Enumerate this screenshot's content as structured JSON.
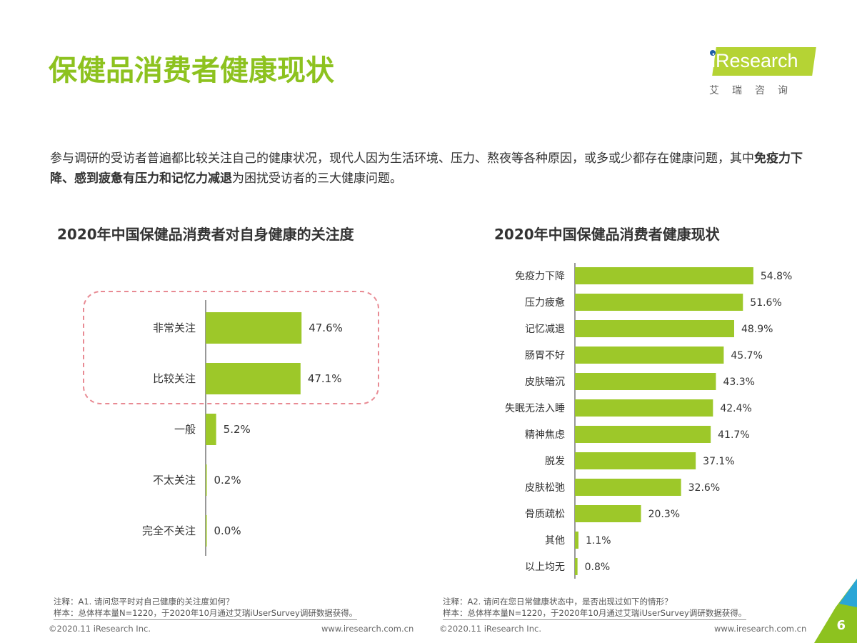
{
  "header": {
    "title": "保健品消费者健康现状",
    "logo_text": "iResearch",
    "logo_cn": "艾瑞咨询"
  },
  "intro": {
    "part1": "参与调研的受访者普遍都比较关注自己的健康状况，现代人因为生活环境、压力、熬夜等各种原因，或多或少都存在健康问题，其中",
    "bold": "免疫力下降、感到疲惫有压力和记忆力减退",
    "part2": "为困扰受访者的三大健康问题。"
  },
  "chart_data": [
    {
      "type": "bar",
      "orientation": "horizontal",
      "title": "2020年中国保健品消费者对自身健康的关注度",
      "categories": [
        "非常关注",
        "比较关注",
        "一般",
        "不太关注",
        "完全不关注"
      ],
      "values": [
        47.6,
        47.1,
        5.2,
        0.2,
        0.0
      ],
      "labels": [
        "47.6%",
        "47.1%",
        "5.2%",
        "0.2%",
        "0.0%"
      ],
      "unit": "%",
      "color": "#9dc829",
      "highlight": [
        "非常关注",
        "比较关注"
      ],
      "highlight_color": "#e88a93"
    },
    {
      "type": "bar",
      "orientation": "horizontal",
      "title": "2020年中国保健品消费者健康现状",
      "categories": [
        "免疫力下降",
        "压力疲惫",
        "记忆减退",
        "肠胃不好",
        "皮肤暗沉",
        "失眠无法入睡",
        "精神焦虑",
        "脱发",
        "皮肤松弛",
        "骨质疏松",
        "其他",
        "以上均无"
      ],
      "values": [
        54.8,
        51.6,
        48.9,
        45.7,
        43.3,
        42.4,
        41.7,
        37.1,
        32.6,
        20.3,
        1.1,
        0.8
      ],
      "labels": [
        "54.8%",
        "51.6%",
        "48.9%",
        "45.7%",
        "43.3%",
        "42.4%",
        "41.7%",
        "37.1%",
        "32.6%",
        "20.3%",
        "1.1%",
        "0.8%"
      ],
      "unit": "%",
      "color": "#9dc829"
    }
  ],
  "notes": {
    "left": {
      "note": "注释：A1. 请问您平时对自己健康的关注度如何？",
      "sample": "样本：总体样本量N=1220，于2020年10月通过艾瑞iUserSurvey调研数据获得。"
    },
    "right": {
      "note": "注释：A2. 请问在您日常健康状态中，是否出现过如下的情形？",
      "sample": "样本：总体样本量N=1220，于2020年10月通过艾瑞iUserSurvey调研数据获得。"
    }
  },
  "footer": {
    "copyright": "©2020.11 iResearch Inc.",
    "url": "www.iresearch.com.cn",
    "page": "6"
  }
}
